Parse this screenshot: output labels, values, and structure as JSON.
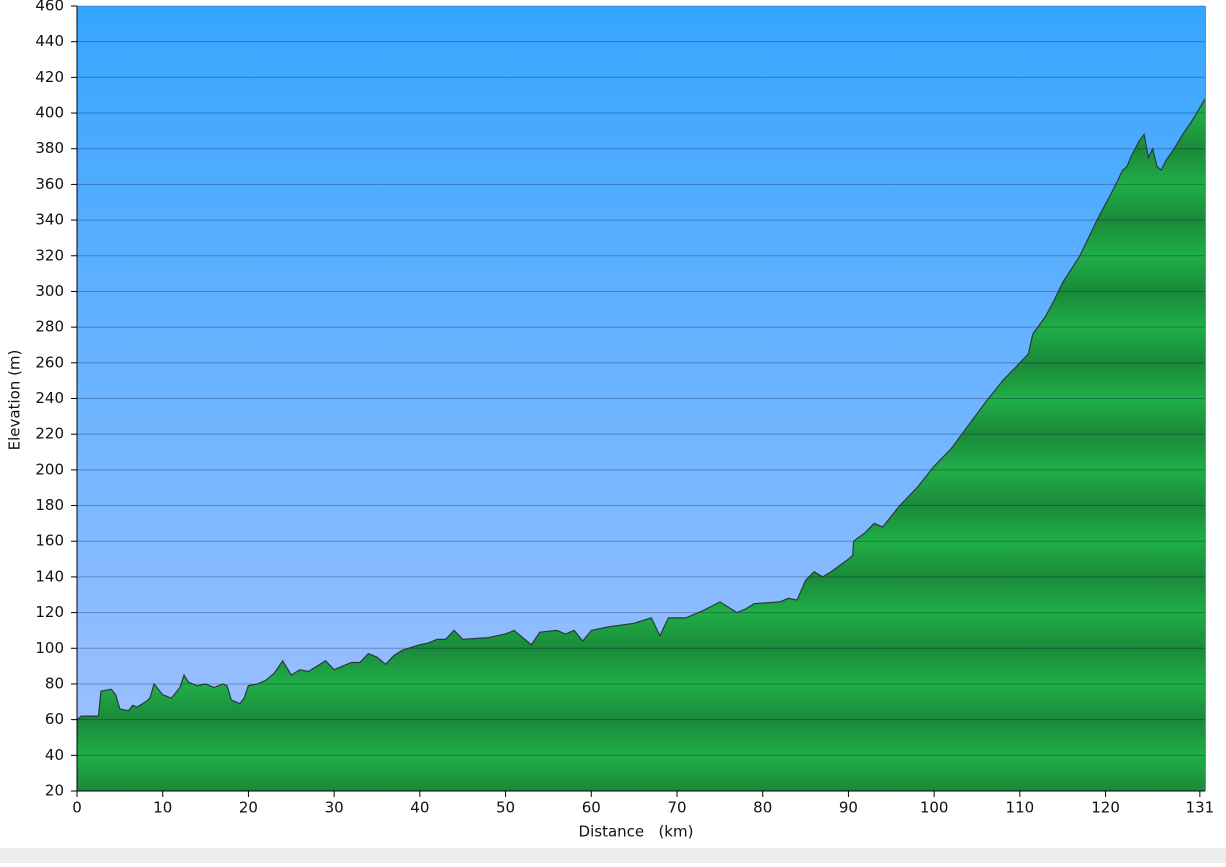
{
  "chart_data": {
    "type": "area",
    "x_label": "Distance   (km)",
    "y_label": "Elevation (m)",
    "x": [
      0,
      0.5,
      2.5,
      2.8,
      4,
      4.5,
      5,
      6,
      6.5,
      7,
      8,
      8.5,
      9,
      10,
      11,
      12,
      12.5,
      13,
      14,
      15,
      16,
      17,
      17.5,
      18,
      19,
      19.5,
      20,
      21,
      22,
      23,
      24,
      25,
      26,
      27,
      28,
      29,
      30,
      31,
      32,
      33,
      34,
      35,
      36,
      37,
      38,
      40,
      41,
      42,
      43,
      44,
      45,
      48,
      50,
      51,
      52,
      53,
      54,
      56,
      57,
      58,
      59,
      60,
      62,
      65,
      67,
      68,
      69,
      71,
      73,
      75,
      77,
      78,
      79,
      82,
      83,
      84,
      85,
      86,
      87,
      88,
      90,
      90.5,
      90.6,
      92,
      93,
      94,
      96,
      98,
      100,
      102,
      104,
      106,
      108,
      110,
      111,
      111.5,
      113,
      114,
      115,
      117,
      119,
      121,
      122,
      122.5,
      123,
      124,
      124.5,
      125,
      125.5,
      126,
      126.5,
      127,
      128,
      129,
      130,
      131,
      131.6
    ],
    "values": [
      60,
      62,
      62,
      76,
      77,
      74,
      66,
      65,
      68,
      67,
      70,
      72,
      80,
      74,
      72,
      78,
      85,
      81,
      79,
      80,
      78,
      80,
      79,
      71,
      69,
      72,
      79,
      80,
      82,
      86,
      93,
      85,
      88,
      87,
      90,
      93,
      88,
      90,
      92,
      92,
      97,
      95,
      91,
      96,
      99,
      102,
      103,
      105,
      105,
      110,
      105,
      106,
      108,
      110,
      106,
      102,
      109,
      110,
      108,
      110,
      104,
      110,
      112,
      114,
      117,
      107,
      117,
      117,
      121,
      126,
      120,
      122,
      125,
      126,
      128,
      127,
      138,
      143,
      140,
      143,
      150,
      152,
      160,
      165,
      170,
      168,
      180,
      190,
      202,
      212,
      225,
      238,
      250,
      260,
      265,
      276,
      286,
      295,
      305,
      320,
      340,
      358,
      368,
      370,
      376,
      385,
      388,
      375,
      380,
      370,
      368,
      373,
      380,
      388,
      395,
      403,
      408
    ],
    "color": "#20ae48",
    "line_color": "#2a3a3a",
    "sky_top": "#36a6ff",
    "sky_bottom": "#a4c2ff",
    "xlim": [
      0,
      131.6
    ],
    "ylim": [
      20,
      460
    ],
    "xticks": [
      0,
      10,
      20,
      30,
      40,
      50,
      60,
      70,
      80,
      90,
      100,
      110,
      120,
      131
    ],
    "yticks": [
      20,
      40,
      60,
      80,
      100,
      120,
      140,
      160,
      180,
      200,
      220,
      240,
      260,
      280,
      300,
      320,
      340,
      360,
      380,
      400,
      420,
      440,
      460
    ],
    "grid": true
  }
}
